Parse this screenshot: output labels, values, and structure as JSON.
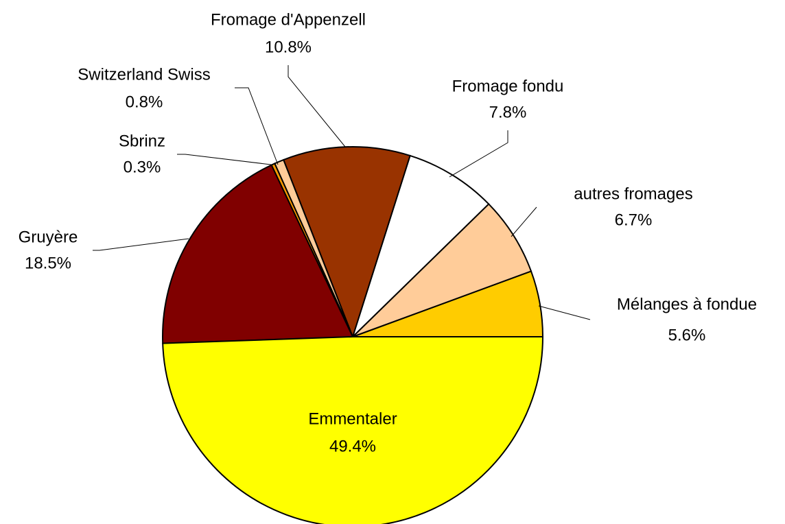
{
  "chart_data": {
    "type": "pie",
    "categories": [
      "Mélanges à fondue",
      "autres fromages",
      "Fromage fondu",
      "Fromage d'Appenzell",
      "Switzerland Swiss",
      "Sbrinz",
      "Gruyère",
      "Emmentaler"
    ],
    "values": [
      5.6,
      6.7,
      7.8,
      10.8,
      0.8,
      0.3,
      18.5,
      49.4
    ],
    "value_labels": [
      "5.6%",
      "6.7%",
      "7.8%",
      "10.8%",
      "0.8%",
      "0.3%",
      "18.5%",
      "49.4%"
    ],
    "colors": [
      "#FFCC00",
      "#FFCC99",
      "#FFFFFF",
      "#993300",
      "#FFCC99",
      "#FF9900",
      "#800000",
      "#FFFF00"
    ]
  }
}
